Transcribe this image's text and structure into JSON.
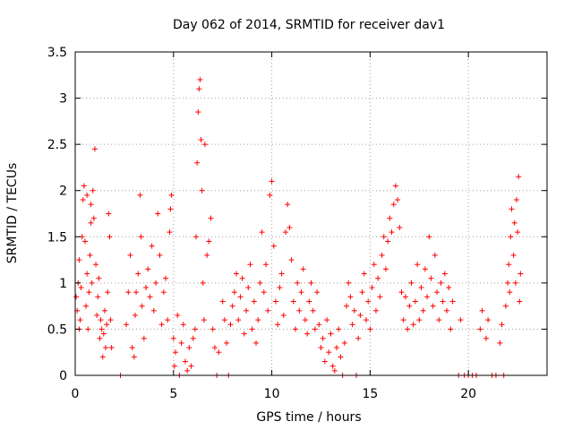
{
  "chart_data": {
    "type": "scatter",
    "title": "Day 062 of 2014, SRMTID for receiver dav1",
    "xlabel": "GPS time / hours",
    "ylabel": "SRMTID / TECUs",
    "xlim": [
      0,
      24
    ],
    "ylim": [
      0,
      3.5
    ],
    "xticks": [
      0,
      5,
      10,
      15,
      20
    ],
    "xtick_labels": [
      "0",
      "5",
      "10",
      "15",
      "20"
    ],
    "yticks": [
      0,
      0.5,
      1,
      1.5,
      2,
      2.5,
      3,
      3.5
    ],
    "ytick_labels": [
      "0",
      "0.5",
      "1",
      "1.5",
      "2",
      "2.5",
      "3",
      "3.5"
    ],
    "grid": true,
    "marker": "+",
    "marker_color": "#ff0000",
    "series": [
      {
        "name": "SRMTID",
        "points": [
          [
            0.05,
            0.85
          ],
          [
            0.1,
            0.7
          ],
          [
            0.15,
            1.0
          ],
          [
            0.2,
            1.25
          ],
          [
            0.25,
            0.6
          ],
          [
            0.3,
            0.95
          ],
          [
            0.35,
            1.5
          ],
          [
            0.4,
            1.9
          ],
          [
            0.45,
            2.05
          ],
          [
            0.5,
            1.45
          ],
          [
            0.55,
            0.75
          ],
          [
            0.6,
            1.1
          ],
          [
            0.65,
            0.5
          ],
          [
            0.7,
            0.9
          ],
          [
            0.75,
            1.3
          ],
          [
            0.8,
            1.65
          ],
          [
            0.85,
            1.0
          ],
          [
            0.9,
            2.0
          ],
          [
            0.95,
            1.7
          ],
          [
            1.0,
            2.45
          ],
          [
            1.05,
            1.2
          ],
          [
            1.1,
            0.65
          ],
          [
            1.15,
            0.85
          ],
          [
            1.2,
            1.05
          ],
          [
            1.25,
            0.4
          ],
          [
            1.3,
            0.6
          ],
          [
            1.35,
            0.5
          ],
          [
            1.4,
            0.2
          ],
          [
            1.45,
            0.45
          ],
          [
            1.5,
            0.7
          ],
          [
            1.55,
            0.3
          ],
          [
            1.6,
            0.55
          ],
          [
            1.65,
            0.9
          ],
          [
            1.7,
            1.75
          ],
          [
            1.75,
            1.5
          ],
          [
            1.8,
            0.6
          ],
          [
            1.85,
            0.3
          ],
          [
            0.2,
            0.5
          ],
          [
            0.6,
            1.95
          ],
          [
            0.8,
            1.85
          ],
          [
            2.3,
            0.0
          ],
          [
            2.6,
            0.55
          ],
          [
            2.7,
            0.9
          ],
          [
            2.8,
            1.3
          ],
          [
            2.9,
            0.3
          ],
          [
            3.0,
            0.2
          ],
          [
            3.05,
            0.65
          ],
          [
            3.1,
            0.9
          ],
          [
            3.2,
            1.1
          ],
          [
            3.3,
            1.95
          ],
          [
            3.35,
            1.5
          ],
          [
            3.4,
            0.75
          ],
          [
            3.5,
            0.4
          ],
          [
            3.6,
            0.95
          ],
          [
            3.7,
            1.15
          ],
          [
            3.8,
            0.85
          ],
          [
            3.9,
            1.4
          ],
          [
            4.0,
            0.7
          ],
          [
            4.1,
            1.0
          ],
          [
            4.2,
            1.75
          ],
          [
            4.3,
            1.3
          ],
          [
            4.4,
            0.55
          ],
          [
            4.5,
            0.9
          ],
          [
            4.6,
            1.05
          ],
          [
            4.7,
            0.6
          ],
          [
            4.8,
            1.55
          ],
          [
            4.85,
            1.8
          ],
          [
            4.9,
            1.95
          ],
          [
            5.0,
            0.4
          ],
          [
            5.05,
            0.1
          ],
          [
            5.1,
            0.25
          ],
          [
            5.2,
            0.65
          ],
          [
            5.3,
            0.0
          ],
          [
            5.4,
            0.35
          ],
          [
            5.5,
            0.55
          ],
          [
            5.6,
            0.15
          ],
          [
            5.7,
            0.05
          ],
          [
            5.8,
            0.3
          ],
          [
            5.9,
            0.1
          ],
          [
            6.0,
            0.4
          ],
          [
            6.1,
            0.5
          ],
          [
            6.15,
            1.5
          ],
          [
            6.2,
            2.3
          ],
          [
            6.25,
            2.85
          ],
          [
            6.3,
            3.1
          ],
          [
            6.35,
            3.2
          ],
          [
            6.4,
            2.55
          ],
          [
            6.45,
            2.0
          ],
          [
            6.5,
            1.0
          ],
          [
            6.55,
            0.6
          ],
          [
            6.6,
            2.5
          ],
          [
            6.7,
            1.3
          ],
          [
            6.8,
            1.45
          ],
          [
            6.9,
            1.7
          ],
          [
            7.0,
            0.5
          ],
          [
            7.1,
            0.3
          ],
          [
            7.2,
            0.0
          ],
          [
            7.3,
            0.25
          ],
          [
            7.5,
            0.8
          ],
          [
            7.6,
            0.6
          ],
          [
            7.7,
            0.35
          ],
          [
            7.8,
            0.0
          ],
          [
            7.9,
            0.55
          ],
          [
            8.0,
            0.75
          ],
          [
            8.1,
            0.9
          ],
          [
            8.2,
            1.1
          ],
          [
            8.3,
            0.6
          ],
          [
            8.4,
            0.85
          ],
          [
            8.5,
            1.05
          ],
          [
            8.6,
            0.45
          ],
          [
            8.7,
            0.7
          ],
          [
            8.8,
            0.95
          ],
          [
            8.9,
            1.2
          ],
          [
            9.0,
            0.5
          ],
          [
            9.1,
            0.8
          ],
          [
            9.2,
            0.35
          ],
          [
            9.3,
            0.6
          ],
          [
            9.4,
            1.0
          ],
          [
            9.5,
            1.55
          ],
          [
            9.6,
            0.9
          ],
          [
            9.7,
            1.2
          ],
          [
            9.8,
            0.7
          ],
          [
            9.9,
            1.95
          ],
          [
            10.0,
            2.1
          ],
          [
            10.1,
            1.4
          ],
          [
            10.2,
            0.8
          ],
          [
            10.3,
            0.55
          ],
          [
            10.4,
            0.95
          ],
          [
            10.5,
            1.1
          ],
          [
            10.6,
            0.65
          ],
          [
            10.7,
            1.55
          ],
          [
            10.8,
            1.85
          ],
          [
            10.9,
            1.6
          ],
          [
            11.0,
            1.25
          ],
          [
            11.1,
            0.8
          ],
          [
            11.2,
            0.5
          ],
          [
            11.3,
            1.0
          ],
          [
            11.4,
            0.7
          ],
          [
            11.5,
            0.9
          ],
          [
            11.6,
            1.15
          ],
          [
            11.7,
            0.6
          ],
          [
            11.8,
            0.45
          ],
          [
            11.9,
            0.8
          ],
          [
            12.0,
            1.0
          ],
          [
            12.1,
            0.7
          ],
          [
            12.2,
            0.5
          ],
          [
            12.3,
            0.9
          ],
          [
            12.4,
            0.55
          ],
          [
            12.5,
            0.3
          ],
          [
            12.6,
            0.4
          ],
          [
            12.7,
            0.15
          ],
          [
            12.8,
            0.6
          ],
          [
            12.9,
            0.25
          ],
          [
            13.0,
            0.45
          ],
          [
            13.1,
            0.1
          ],
          [
            13.2,
            0.05
          ],
          [
            13.3,
            0.3
          ],
          [
            13.4,
            0.5
          ],
          [
            13.5,
            0.2
          ],
          [
            13.6,
            0.0
          ],
          [
            13.7,
            0.35
          ],
          [
            13.8,
            0.75
          ],
          [
            13.9,
            1.0
          ],
          [
            14.0,
            0.85
          ],
          [
            14.1,
            0.55
          ],
          [
            14.2,
            0.7
          ],
          [
            14.3,
            0.0
          ],
          [
            14.4,
            0.4
          ],
          [
            14.5,
            0.65
          ],
          [
            14.6,
            0.9
          ],
          [
            14.7,
            1.1
          ],
          [
            14.8,
            0.6
          ],
          [
            14.9,
            0.8
          ],
          [
            15.0,
            0.5
          ],
          [
            15.1,
            0.95
          ],
          [
            15.2,
            1.2
          ],
          [
            15.3,
            0.7
          ],
          [
            15.4,
            1.05
          ],
          [
            15.5,
            0.85
          ],
          [
            15.6,
            1.3
          ],
          [
            15.7,
            1.5
          ],
          [
            15.8,
            1.15
          ],
          [
            15.9,
            1.45
          ],
          [
            16.0,
            1.7
          ],
          [
            16.1,
            1.55
          ],
          [
            16.2,
            1.85
          ],
          [
            16.3,
            2.05
          ],
          [
            16.4,
            1.9
          ],
          [
            16.5,
            1.6
          ],
          [
            16.6,
            0.9
          ],
          [
            16.7,
            0.6
          ],
          [
            16.8,
            0.85
          ],
          [
            16.9,
            0.5
          ],
          [
            17.0,
            0.75
          ],
          [
            17.1,
            1.0
          ],
          [
            17.2,
            0.55
          ],
          [
            17.3,
            0.8
          ],
          [
            17.4,
            1.2
          ],
          [
            17.5,
            0.6
          ],
          [
            17.6,
            0.95
          ],
          [
            17.7,
            0.7
          ],
          [
            17.8,
            1.15
          ],
          [
            17.9,
            0.85
          ],
          [
            18.0,
            1.5
          ],
          [
            18.1,
            1.05
          ],
          [
            18.2,
            0.75
          ],
          [
            18.3,
            1.3
          ],
          [
            18.4,
            0.9
          ],
          [
            18.5,
            0.6
          ],
          [
            18.6,
            1.0
          ],
          [
            18.7,
            0.8
          ],
          [
            18.8,
            1.1
          ],
          [
            18.9,
            0.7
          ],
          [
            19.0,
            0.95
          ],
          [
            19.1,
            0.5
          ],
          [
            19.2,
            0.8
          ],
          [
            19.5,
            0.0
          ],
          [
            19.6,
            0.6
          ],
          [
            19.8,
            0.0
          ],
          [
            20.0,
            0.0
          ],
          [
            20.2,
            0.0
          ],
          [
            20.4,
            0.0
          ],
          [
            20.6,
            0.5
          ],
          [
            20.7,
            0.7
          ],
          [
            20.9,
            0.4
          ],
          [
            21.0,
            0.6
          ],
          [
            21.2,
            0.0
          ],
          [
            21.4,
            0.0
          ],
          [
            21.6,
            0.35
          ],
          [
            21.7,
            0.55
          ],
          [
            21.8,
            0.0
          ],
          [
            21.9,
            0.75
          ],
          [
            22.0,
            1.0
          ],
          [
            22.05,
            1.2
          ],
          [
            22.1,
            0.9
          ],
          [
            22.15,
            1.5
          ],
          [
            22.2,
            1.8
          ],
          [
            22.3,
            1.3
          ],
          [
            22.35,
            1.65
          ],
          [
            22.4,
            1.0
          ],
          [
            22.45,
            1.9
          ],
          [
            22.5,
            1.55
          ],
          [
            22.55,
            2.15
          ],
          [
            22.6,
            0.8
          ],
          [
            22.65,
            1.1
          ]
        ]
      }
    ]
  }
}
